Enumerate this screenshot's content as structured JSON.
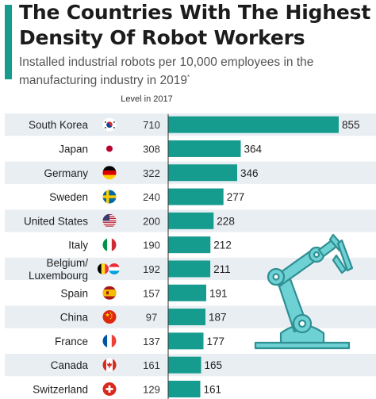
{
  "title": "The Countries With The Highest Density Of Robot Workers",
  "subtitle": "Installed industrial robots per 10,000 employees in the manufacturing industry in 2019",
  "subtitle_mark": "*",
  "level_header": "Level in 2017",
  "colors": {
    "accent": "#169c8e",
    "bar": "#169c8e",
    "stripe": "#e9eef3",
    "robot": "#6ed1d3",
    "robot_dark": "#2f8f93"
  },
  "chart_data": {
    "type": "bar",
    "orientation": "horizontal",
    "title": "The Countries With The Highest Density Of Robot Workers",
    "subtitle": "Installed industrial robots per 10,000 employees in the manufacturing industry in 2019",
    "categories": [
      "South Korea",
      "Japan",
      "Germany",
      "Sweden",
      "United States",
      "Italy",
      "Belgium/ Luxembourg",
      "Spain",
      "China",
      "France",
      "Canada",
      "Switzerland"
    ],
    "series": [
      {
        "name": "2019",
        "values": [
          855,
          364,
          346,
          277,
          228,
          212,
          211,
          191,
          187,
          177,
          165,
          161
        ]
      },
      {
        "name": "Level in 2017",
        "values": [
          710,
          308,
          322,
          240,
          200,
          190,
          192,
          157,
          97,
          137,
          161,
          129
        ]
      }
    ],
    "flags": [
      "south-korea-flag-icon",
      "japan-flag-icon",
      "germany-flag-icon",
      "sweden-flag-icon",
      "united-states-flag-icon",
      "italy-flag-icon",
      "belgium-luxembourg-flag-icon",
      "spain-flag-icon",
      "china-flag-icon",
      "france-flag-icon",
      "canada-flag-icon",
      "switzerland-flag-icon"
    ],
    "xlim": [
      0,
      855
    ],
    "grid": false,
    "legend": "none"
  }
}
